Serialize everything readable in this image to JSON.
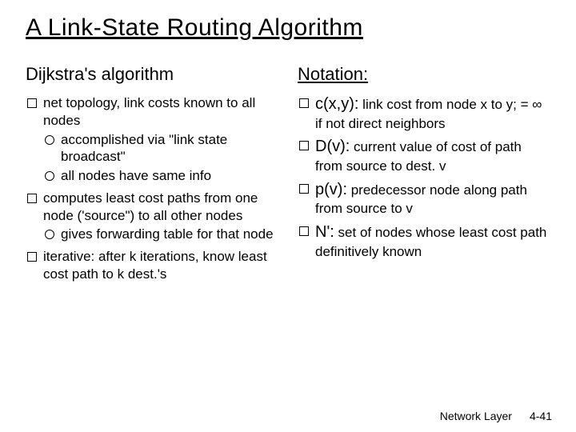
{
  "title": "A Link-State Routing Algorithm",
  "left": {
    "heading": "Dijkstra's algorithm",
    "items": [
      {
        "text": "net topology, link costs known to all nodes",
        "sub": [
          "accomplished via \"link state broadcast\"",
          "all nodes have same info"
        ]
      },
      {
        "text": "computes least cost paths from one node ('source\") to all other nodes",
        "sub": [
          "gives forwarding table for that node"
        ]
      },
      {
        "text": "iterative: after k iterations, know least cost path to k dest.'s",
        "sub": []
      }
    ]
  },
  "right": {
    "heading": "Notation:",
    "items": [
      {
        "term": "c(x,y):",
        "desc": " link cost from node x to y;  = ∞ if not direct neighbors"
      },
      {
        "term": "D(v):",
        "desc": " current value of cost of path from source to dest. v"
      },
      {
        "term": "p(v):",
        "desc": " predecessor node along path from source to v"
      },
      {
        "term": "N':",
        "desc": " set of nodes whose least cost path definitively known"
      }
    ]
  },
  "footer": {
    "section": "Network Layer",
    "page": "4-41"
  },
  "colors": {
    "background": "#ffffff",
    "text": "#000000"
  }
}
